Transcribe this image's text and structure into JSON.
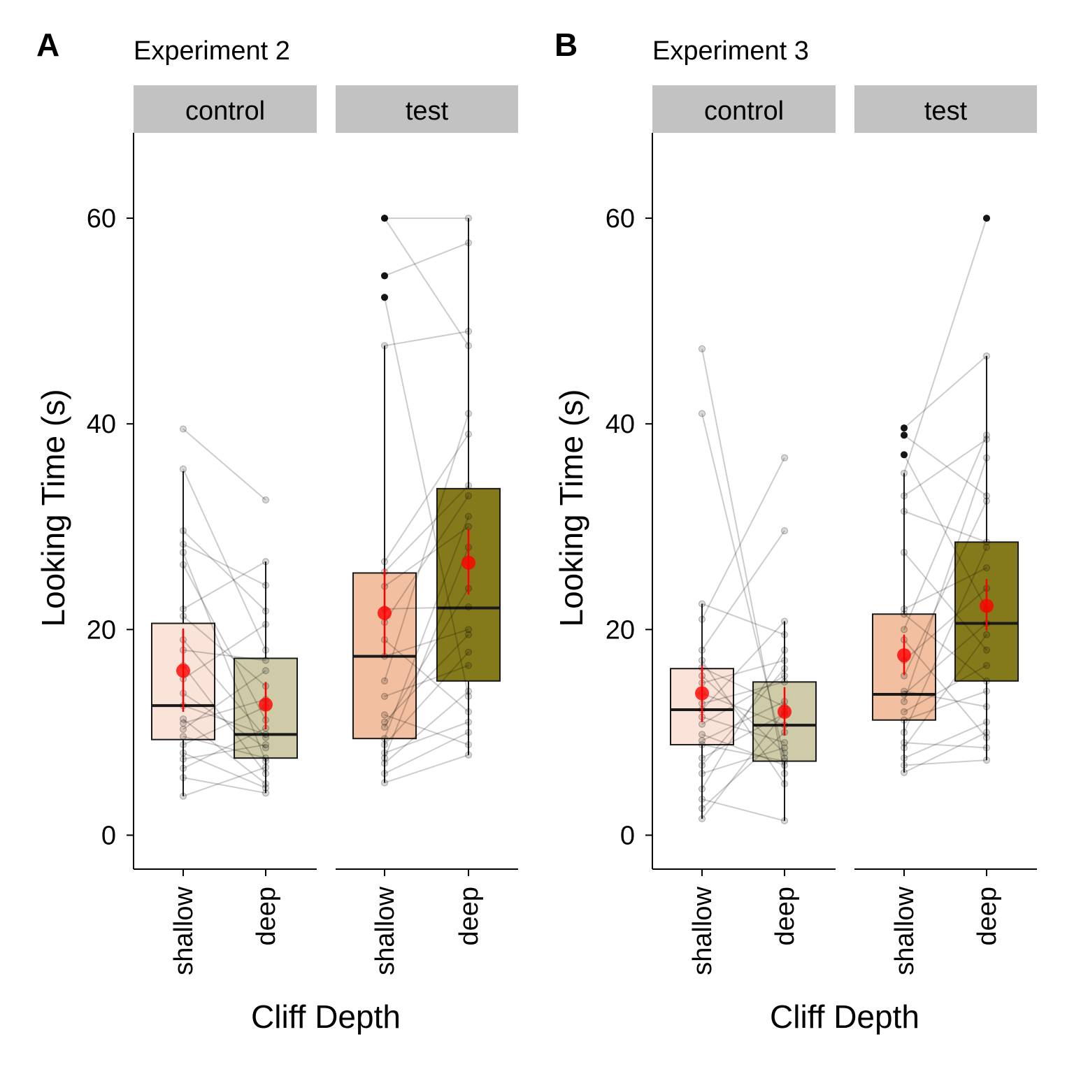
{
  "chart_data": [
    {
      "type": "box",
      "panel_label": "A",
      "title": "Experiment 2",
      "xlabel": "Cliff Depth",
      "ylabel": "Looking Time (s)",
      "ylim": [
        -3.3,
        68.3
      ],
      "yticks": [
        0,
        20,
        40,
        60
      ],
      "grid": false,
      "facets": [
        {
          "name": "control",
          "categories": [
            "shallow",
            "deep"
          ],
          "boxes": [
            {
              "category": "shallow",
              "color": "#FAE3D8",
              "q1": 9.3,
              "median": 12.6,
              "q3": 20.6,
              "whisker_low": 3.8,
              "whisker_high": 35.4,
              "outliers": [],
              "mean": 16.0,
              "ci": [
                12.0,
                20.1
              ]
            },
            {
              "category": "deep",
              "color": "#CFCBA8",
              "q1": 7.5,
              "median": 9.8,
              "q3": 17.2,
              "whisker_low": 4.1,
              "whisker_high": 26.6,
              "outliers": [],
              "mean": 12.7,
              "ci": [
                10.3,
                14.9
              ]
            }
          ],
          "pairs": [
            [
              39.5,
              32.6
            ],
            [
              35.6,
              18.0
            ],
            [
              29.6,
              21.8
            ],
            [
              28.3,
              24.3
            ],
            [
              27.5,
              7.2
            ],
            [
              26.3,
              11.2
            ],
            [
              22.0,
              26.6
            ],
            [
              21.3,
              14.5
            ],
            [
              19.0,
              9.5
            ],
            [
              18.0,
              17.0
            ],
            [
              16.5,
              6.0
            ],
            [
              15.2,
              20.5
            ],
            [
              13.8,
              8.5
            ],
            [
              12.6,
              9.8
            ],
            [
              11.3,
              5.0
            ],
            [
              10.9,
              13.2
            ],
            [
              10.3,
              16.0
            ],
            [
              9.6,
              7.5
            ],
            [
              8.8,
              12.5
            ],
            [
              8.0,
              4.6
            ],
            [
              7.4,
              8.8
            ],
            [
              6.5,
              10.4
            ],
            [
              5.6,
              4.1
            ],
            [
              3.8,
              6.6
            ]
          ]
        },
        {
          "name": "test",
          "categories": [
            "shallow",
            "deep"
          ],
          "boxes": [
            {
              "category": "shallow",
              "color": "#F2BFA0",
              "q1": 9.4,
              "median": 17.4,
              "q3": 25.5,
              "whisker_low": 5.1,
              "whisker_high": 47.6,
              "outliers": [
                60.0,
                54.4,
                52.3
              ],
              "mean": 21.6,
              "ci": [
                17.5,
                25.9
              ]
            },
            {
              "category": "deep",
              "color": "#857A1B",
              "q1": 15.0,
              "median": 22.1,
              "q3": 33.7,
              "whisker_low": 7.8,
              "whisker_high": 60.0,
              "outliers": [],
              "mean": 26.5,
              "ci": [
                23.4,
                29.8
              ]
            }
          ],
          "pairs": [
            [
              60.0,
              47.6
            ],
            [
              60.0,
              60.0
            ],
            [
              54.4,
              57.6
            ],
            [
              52.3,
              13.5
            ],
            [
              47.6,
              49.0
            ],
            [
              26.6,
              39.0
            ],
            [
              25.6,
              34.0
            ],
            [
              24.2,
              30.0
            ],
            [
              22.0,
              22.2
            ],
            [
              20.7,
              33.0
            ],
            [
              19.0,
              12.0
            ],
            [
              17.4,
              20.0
            ],
            [
              15.0,
              41.0
            ],
            [
              13.5,
              16.5
            ],
            [
              11.7,
              8.8
            ],
            [
              11.0,
              19.5
            ],
            [
              10.5,
              24.0
            ],
            [
              9.4,
              31.0
            ],
            [
              8.8,
              17.8
            ],
            [
              8.0,
              11.0
            ],
            [
              7.5,
              28.0
            ],
            [
              7.0,
              14.0
            ],
            [
              6.0,
              10.0
            ],
            [
              5.1,
              7.8
            ]
          ]
        }
      ]
    },
    {
      "type": "box",
      "panel_label": "B",
      "title": "Experiment 3",
      "xlabel": "Cliff Depth",
      "ylabel": "Looking Time (s)",
      "ylim": [
        -3.3,
        68.3
      ],
      "yticks": [
        0,
        20,
        40,
        60
      ],
      "grid": false,
      "facets": [
        {
          "name": "control",
          "categories": [
            "shallow",
            "deep"
          ],
          "boxes": [
            {
              "category": "shallow",
              "color": "#FAE3D8",
              "q1": 8.8,
              "median": 12.2,
              "q3": 16.2,
              "whisker_low": 1.6,
              "whisker_high": 22.5,
              "outliers": [],
              "mean": 13.8,
              "ci": [
                11.0,
                16.5
              ]
            },
            {
              "category": "deep",
              "color": "#CFCBA8",
              "q1": 7.2,
              "median": 10.7,
              "q3": 14.9,
              "whisker_low": 1.4,
              "whisker_high": 20.8,
              "outliers": [],
              "mean": 12.0,
              "ci": [
                9.7,
                14.4
              ]
            }
          ],
          "pairs": [
            [
              47.3,
              6.0
            ],
            [
              41.0,
              7.5
            ],
            [
              22.5,
              19.5
            ],
            [
              21.0,
              36.7
            ],
            [
              18.0,
              29.6
            ],
            [
              17.0,
              5.0
            ],
            [
              16.3,
              12.5
            ],
            [
              15.5,
              8.0
            ],
            [
              14.8,
              17.0
            ],
            [
              13.8,
              10.7
            ],
            [
              12.8,
              14.9
            ],
            [
              12.2,
              20.8
            ],
            [
              11.5,
              9.0
            ],
            [
              10.8,
              15.5
            ],
            [
              9.8,
              6.8
            ],
            [
              9.2,
              13.0
            ],
            [
              8.8,
              7.2
            ],
            [
              7.5,
              11.8
            ],
            [
              6.8,
              16.2
            ],
            [
              6.0,
              8.5
            ],
            [
              4.5,
              18.0
            ],
            [
              3.5,
              1.4
            ],
            [
              2.6,
              10.0
            ],
            [
              1.6,
              12.0
            ]
          ]
        },
        {
          "name": "test",
          "categories": [
            "shallow",
            "deep"
          ],
          "boxes": [
            {
              "category": "shallow",
              "color": "#F2BFA0",
              "q1": 11.2,
              "median": 13.7,
              "q3": 21.5,
              "whisker_low": 6.1,
              "whisker_high": 35.2,
              "outliers": [
                39.6,
                38.9,
                37.0
              ],
              "mean": 17.5,
              "ci": [
                15.6,
                19.5
              ]
            },
            {
              "category": "deep",
              "color": "#857A1B",
              "q1": 15.0,
              "median": 20.6,
              "q3": 28.5,
              "whisker_low": 7.3,
              "whisker_high": 46.6,
              "outliers": [
                60.0
              ],
              "mean": 22.3,
              "ci": [
                19.9,
                24.9
              ]
            }
          ],
          "pairs": [
            [
              39.6,
              46.6
            ],
            [
              38.9,
              33.0
            ],
            [
              37.0,
              22.0
            ],
            [
              35.2,
              60.0
            ],
            [
              33.0,
              38.5
            ],
            [
              31.5,
              28.5
            ],
            [
              27.5,
              18.0
            ],
            [
              22.0,
              26.0
            ],
            [
              21.5,
              15.0
            ],
            [
              20.0,
              38.9
            ],
            [
              19.0,
              9.5
            ],
            [
              17.0,
              24.0
            ],
            [
              15.5,
              32.5
            ],
            [
              14.0,
              12.5
            ],
            [
              13.7,
              20.6
            ],
            [
              13.0,
              36.7
            ],
            [
              12.0,
              16.5
            ],
            [
              11.2,
              14.0
            ],
            [
              10.0,
              28.0
            ],
            [
              9.0,
              8.5
            ],
            [
              8.5,
              19.5
            ],
            [
              7.5,
              11.0
            ],
            [
              6.8,
              7.3
            ],
            [
              6.1,
              10.0
            ]
          ]
        }
      ]
    }
  ]
}
